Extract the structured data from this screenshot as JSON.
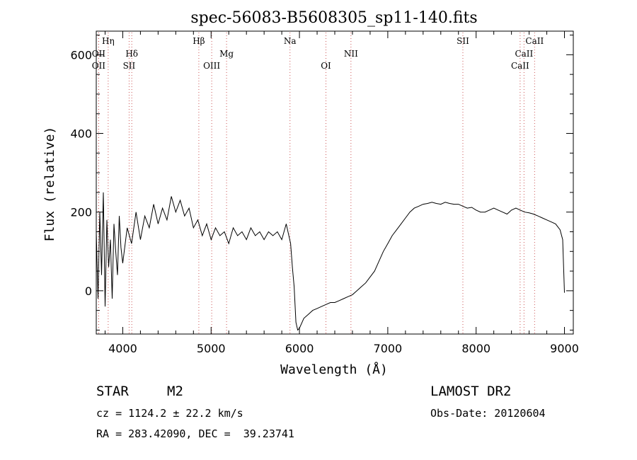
{
  "chart_data": {
    "type": "line",
    "title": "spec-56083-B5608305_sp11-140.fits",
    "xlabel": "Wavelength (Å)",
    "ylabel": "Flux (relative)",
    "xlim": [
      3700,
      9100
    ],
    "ylim": [
      -110,
      660
    ],
    "xticks": [
      4000,
      5000,
      6000,
      7000,
      8000,
      9000
    ],
    "yticks": [
      0,
      200,
      400,
      600
    ],
    "grid": false,
    "series": [
      {
        "name": "",
        "x": [
          3700,
          3720,
          3740,
          3760,
          3780,
          3800,
          3820,
          3840,
          3860,
          3880,
          3900,
          3920,
          3940,
          3960,
          3980,
          4000,
          4050,
          4100,
          4150,
          4200,
          4250,
          4300,
          4350,
          4400,
          4450,
          4500,
          4550,
          4600,
          4650,
          4700,
          4750,
          4800,
          4850,
          4900,
          4950,
          5000,
          5050,
          5100,
          5150,
          5200,
          5250,
          5300,
          5350,
          5400,
          5450,
          5500,
          5550,
          5600,
          5650,
          5700,
          5750,
          5800,
          5850,
          5880,
          5900,
          5920,
          5940,
          5960,
          5980,
          6000,
          6050,
          6100,
          6150,
          6200,
          6250,
          6300,
          6350,
          6400,
          6450,
          6500,
          6550,
          6600,
          6650,
          6700,
          6750,
          6800,
          6850,
          6900,
          6950,
          7000,
          7050,
          7100,
          7150,
          7200,
          7250,
          7300,
          7350,
          7400,
          7450,
          7500,
          7550,
          7600,
          7650,
          7700,
          7750,
          7800,
          7850,
          7900,
          7950,
          8000,
          8050,
          8100,
          8150,
          8200,
          8250,
          8300,
          8350,
          8400,
          8450,
          8500,
          8550,
          8600,
          8650,
          8700,
          8750,
          8800,
          8850,
          8900,
          8950,
          8980,
          9000
        ],
        "y": [
          150,
          -20,
          200,
          40,
          250,
          -40,
          180,
          60,
          130,
          -20,
          170,
          100,
          40,
          190,
          110,
          70,
          160,
          120,
          200,
          130,
          190,
          160,
          220,
          170,
          210,
          180,
          240,
          200,
          230,
          190,
          210,
          160,
          180,
          140,
          170,
          130,
          160,
          140,
          150,
          120,
          160,
          140,
          150,
          130,
          160,
          140,
          150,
          130,
          150,
          140,
          150,
          130,
          170,
          140,
          120,
          60,
          10,
          -80,
          -100,
          -95,
          -70,
          -60,
          -50,
          -45,
          -40,
          -35,
          -30,
          -30,
          -25,
          -20,
          -15,
          -10,
          0,
          10,
          20,
          35,
          50,
          75,
          100,
          120,
          140,
          155,
          170,
          185,
          200,
          210,
          215,
          220,
          222,
          225,
          222,
          220,
          225,
          222,
          220,
          220,
          215,
          210,
          212,
          205,
          200,
          200,
          205,
          210,
          205,
          200,
          195,
          205,
          210,
          205,
          200,
          198,
          195,
          190,
          185,
          180,
          175,
          170,
          155,
          130,
          -5
        ]
      }
    ],
    "spectral_lines": [
      {
        "label": "OII",
        "x": 3727,
        "row": 2
      },
      {
        "label": "OII",
        "x": 3727,
        "row": 3
      },
      {
        "label": "Hη",
        "x": 3835,
        "row": 1
      },
      {
        "label": "Hδ",
        "x": 4102,
        "row": 2
      },
      {
        "label": "SII",
        "x": 4072,
        "row": 3
      },
      {
        "label": "Hβ",
        "x": 4861,
        "row": 1
      },
      {
        "label": "OIII",
        "x": 5007,
        "row": 3
      },
      {
        "label": "Mg",
        "x": 5175,
        "row": 2
      },
      {
        "label": "Na",
        "x": 5893,
        "row": 1
      },
      {
        "label": "OI",
        "x": 6300,
        "row": 3
      },
      {
        "label": "NII",
        "x": 6583,
        "row": 2
      },
      {
        "label": "SII",
        "x": 7850,
        "row": 1
      },
      {
        "label": "CaII",
        "x": 8662,
        "row": 1
      },
      {
        "label": "CaII",
        "x": 8542,
        "row": 2
      },
      {
        "label": "CaII",
        "x": 8498,
        "row": 3
      }
    ]
  },
  "info": {
    "object_class": "STAR",
    "subclass": "M2",
    "survey": "LAMOST DR2",
    "cz": "cz = 1124.2 ± 22.2 km/s",
    "obs_date": "Obs-Date: 20120604",
    "coords": "RA = 283.42090, DEC =  39.23741"
  }
}
